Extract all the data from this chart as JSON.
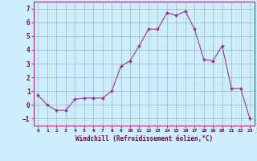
{
  "x": [
    0,
    1,
    2,
    3,
    4,
    5,
    6,
    7,
    8,
    9,
    10,
    11,
    12,
    13,
    14,
    15,
    16,
    17,
    18,
    19,
    20,
    21,
    22,
    23
  ],
  "y": [
    0.7,
    0.0,
    -0.4,
    -0.4,
    0.4,
    0.5,
    0.5,
    0.5,
    1.0,
    2.8,
    3.2,
    4.3,
    5.5,
    5.5,
    6.7,
    6.5,
    6.8,
    5.5,
    3.3,
    3.2,
    4.3,
    1.2,
    1.2,
    -1.0
  ],
  "xlabel": "Windchill (Refroidissement éolien,°C)",
  "xlim": [
    -0.5,
    23.5
  ],
  "ylim": [
    -1.5,
    7.5
  ],
  "xticks": [
    0,
    1,
    2,
    3,
    4,
    5,
    6,
    7,
    8,
    9,
    10,
    11,
    12,
    13,
    14,
    15,
    16,
    17,
    18,
    19,
    20,
    21,
    22,
    23
  ],
  "yticks": [
    -1,
    0,
    1,
    2,
    3,
    4,
    5,
    6,
    7
  ],
  "line_color": "#993399",
  "marker_color": "#993399",
  "bg_color": "#cceeff",
  "grid_color": "#99bbcc",
  "axis_color": "#993399",
  "label_color": "#660066",
  "tick_color": "#660066"
}
